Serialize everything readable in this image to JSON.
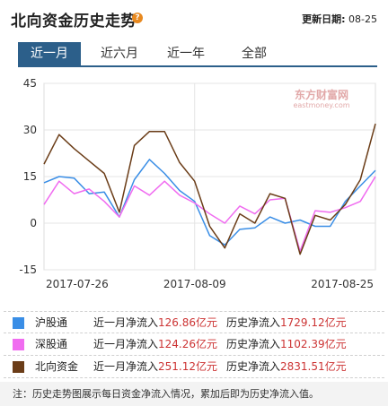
{
  "header": {
    "title": "北向资金历史走势",
    "help_glyph": "?",
    "update_label": "更新日期:",
    "update_value": "08-25"
  },
  "tabs": [
    {
      "label": "近一月",
      "active": true
    },
    {
      "label": "近六月",
      "active": false
    },
    {
      "label": "近一年",
      "active": false
    },
    {
      "label": "全部",
      "active": false
    }
  ],
  "watermark": {
    "brand": "东方财富网",
    "domain": "eastmoney.com"
  },
  "chart_data": {
    "type": "line",
    "title": "",
    "xlabel": "",
    "ylabel": "",
    "ylim": [
      -15,
      45
    ],
    "yticks": [
      45,
      30,
      15,
      0,
      -15
    ],
    "xtick_labels": [
      {
        "index": 0,
        "label": "2017-07-26"
      },
      {
        "index": 10,
        "label": "2017-08-09"
      },
      {
        "index": 22,
        "label": "2017-08-25"
      }
    ],
    "series": [
      {
        "name": "沪股通",
        "color": "#3a8ee6",
        "values": [
          13,
          15,
          14.5,
          9.5,
          10,
          2,
          14,
          20.5,
          16,
          10.5,
          7,
          -4,
          -7,
          -2,
          -1.5,
          2,
          0,
          1,
          -1,
          -1,
          7,
          12,
          17
        ]
      },
      {
        "name": "深股通",
        "color": "#f06cf0",
        "values": [
          6,
          13.5,
          9.5,
          11,
          7,
          2,
          12,
          9,
          13.5,
          9,
          6.5,
          3,
          0,
          5.5,
          3,
          7.5,
          8,
          -9,
          4,
          3.5,
          5,
          7,
          15
        ]
      },
      {
        "name": "北向资金",
        "color": "#6b3d18",
        "values": [
          19,
          28.5,
          24,
          20,
          16,
          3.5,
          25,
          29.5,
          29.5,
          19.5,
          13.5,
          -1,
          -8,
          3,
          0,
          9.5,
          8,
          -10,
          2.5,
          1,
          6,
          14,
          32
        ]
      }
    ]
  },
  "legend": [
    {
      "name": "沪股通",
      "color": "#3a8ee6",
      "month_label": "近一月净流入",
      "month_value": "126.86亿元",
      "hist_label": "历史净流入",
      "hist_value": "1729.12亿元"
    },
    {
      "name": "深股通",
      "color": "#f06cf0",
      "month_label": "近一月净流入",
      "month_value": "124.26亿元",
      "hist_label": "历史净流入",
      "hist_value": "1102.39亿元"
    },
    {
      "name": "北向资金",
      "color": "#6b3d18",
      "month_label": "近一月净流入",
      "month_value": "251.12亿元",
      "hist_label": "历史净流入",
      "hist_value": "2831.51亿元"
    }
  ],
  "note": "注：历史走势图展示每日资金净流入情况，累加后即为历史净流入值。"
}
